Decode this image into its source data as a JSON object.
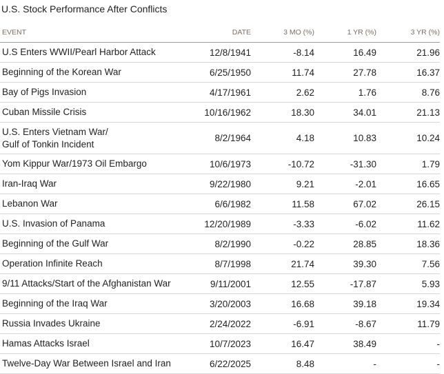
{
  "title": "U.S. Stock Performance After Conflicts",
  "colors": {
    "negative": "#d0312d",
    "header_text": "#7a6f63",
    "row_border": "#d6d6d6"
  },
  "columns": [
    "EVENT",
    "DATE",
    "3 MO (%)",
    "1 YR (%)",
    "3 YR (%)"
  ],
  "rows": [
    {
      "event": "U.S Enters WWII/Pearl Harbor Attack",
      "date": "12/8/1941",
      "mo3": "-8.14",
      "yr1": "16.49",
      "yr3": "21.96"
    },
    {
      "event": "Beginning of the Korean War",
      "date": "6/25/1950",
      "mo3": "11.74",
      "yr1": "27.78",
      "yr3": "16.37"
    },
    {
      "event": "Bay of Pigs Invasion",
      "date": "4/17/1961",
      "mo3": "2.62",
      "yr1": "1.76",
      "yr3": "8.76"
    },
    {
      "event": "Cuban Missile Crisis",
      "date": "10/16/1962",
      "mo3": "18.30",
      "yr1": "34.01",
      "yr3": "21.13"
    },
    {
      "event": "U.S. Enters Vietnam War/",
      "event_line2": "Gulf of Tonkin Incident",
      "date": "8/2/1964",
      "mo3": "4.18",
      "yr1": "10.83",
      "yr3": "10.24"
    },
    {
      "event": "Yom Kippur War/1973 Oil Embargo",
      "date": "10/6/1973",
      "mo3": "-10.72",
      "yr1": "-31.30",
      "yr3": "1.79"
    },
    {
      "event": "Iran-Iraq War",
      "date": "9/22/1980",
      "mo3": "9.21",
      "yr1": "-2.01",
      "yr3": "16.65"
    },
    {
      "event": "Lebanon War",
      "date": "6/6/1982",
      "mo3": "11.58",
      "yr1": "67.02",
      "yr3": "26.15"
    },
    {
      "event": "U.S. Invasion of Panama",
      "date": "12/20/1989",
      "mo3": "-3.33",
      "yr1": "-6.02",
      "yr3": "11.62"
    },
    {
      "event": "Beginning of the Gulf War",
      "date": "8/2/1990",
      "mo3": "-0.22",
      "yr1": "28.85",
      "yr3": "18.36"
    },
    {
      "event": "Operation Infinite Reach",
      "date": "8/7/1998",
      "mo3": "21.74",
      "yr1": "39.30",
      "yr3": "7.56"
    },
    {
      "event": "9/11 Attacks/Start of the Afghanistan War",
      "date": "9/11/2001",
      "mo3": "12.55",
      "yr1": "-17.87",
      "yr3": "5.93"
    },
    {
      "event": "Beginning of the Iraq War",
      "date": "3/20/2003",
      "mo3": "16.68",
      "yr1": "39.18",
      "yr3": "19.34"
    },
    {
      "event": "Russia Invades Ukraine",
      "date": "2/24/2022",
      "mo3": "-6.91",
      "yr1": "-8.67",
      "yr3": "11.79"
    },
    {
      "event": "Hamas Attacks Israel",
      "date": "10/7/2023",
      "mo3": "16.47",
      "yr1": "38.49",
      "yr3": "-"
    },
    {
      "event": "Twelve-Day War Between Israel and Iran",
      "date": "6/22/2025",
      "mo3": "8.48",
      "yr1": "-",
      "yr3": "-"
    }
  ]
}
